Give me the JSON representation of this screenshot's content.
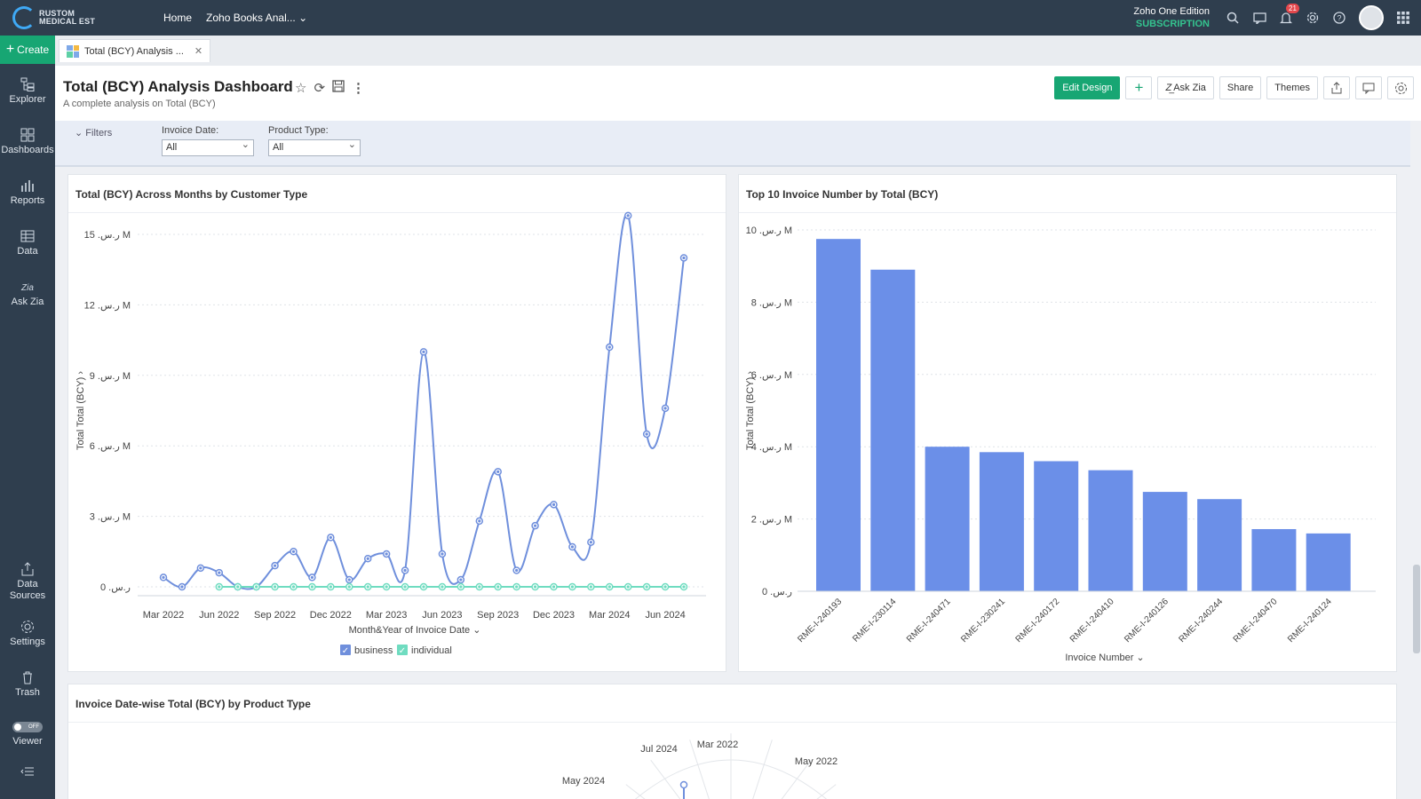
{
  "topbar": {
    "logo_line1": "RUSTOM",
    "logo_line2": "MEDICAL EST",
    "nav_home": "Home",
    "nav_workspace": "Zoho Books Anal...",
    "edition": "Zoho One Edition",
    "subscription": "SUBSCRIPTION",
    "notifications": "21"
  },
  "sidebar": {
    "create": "Create",
    "items": [
      "Explorer",
      "Dashboards",
      "Reports",
      "Data",
      "Ask Zia",
      "Data Sources",
      "Settings",
      "Trash",
      "Viewer"
    ],
    "viewer_toggle": "OFF"
  },
  "tab": {
    "label": "Total (BCY) Analysis ..."
  },
  "header": {
    "title": "Total (BCY) Analysis Dashboard",
    "subtitle": "A complete analysis on Total (BCY)",
    "edit_design": "Edit Design",
    "ask_zia": "Ask Zia",
    "share": "Share",
    "themes": "Themes"
  },
  "filters": {
    "toggle": "Filters",
    "invoice_date_label": "Invoice Date:",
    "invoice_date_value": "All",
    "product_type_label": "Product Type:",
    "product_type_value": "All"
  },
  "colors": {
    "business": "#6f8fdc",
    "individual": "#6fdcc0",
    "bar": "#6b8fe8",
    "accent": "#17a673"
  },
  "chart_data": [
    {
      "type": "line",
      "title": "Total (BCY) Across Months by Customer Type",
      "xlabel": "Month&Year of Invoice Date",
      "ylabel": "Total Total (BCY)",
      "ylim": [
        0,
        15
      ],
      "yticks": [
        "0 .ر.س",
        "3 .ر.س M",
        "6 .ر.س M",
        "9 .ر.س M",
        "12 .ر.س M",
        "15 .ر.س M"
      ],
      "xticks": [
        "Mar 2022",
        "Jun 2022",
        "Sep 2022",
        "Dec 2022",
        "Mar 2023",
        "Jun 2023",
        "Sep 2023",
        "Dec 2023",
        "Mar 2024",
        "Jun 2024"
      ],
      "x": [
        "Mar 2022",
        "Apr 2022",
        "May 2022",
        "Jun 2022",
        "Jul 2022",
        "Aug 2022",
        "Sep 2022",
        "Oct 2022",
        "Nov 2022",
        "Dec 2022",
        "Jan 2023",
        "Feb 2023",
        "Mar 2023",
        "Apr 2023",
        "May 2023",
        "Jun 2023",
        "Jul 2023",
        "Aug 2023",
        "Sep 2023",
        "Oct 2023",
        "Nov 2023",
        "Dec 2023",
        "Jan 2024",
        "Feb 2024",
        "Mar 2024",
        "Apr 2024",
        "May 2024",
        "Jun 2024",
        "Jul 2024"
      ],
      "series": [
        {
          "name": "business",
          "values": [
            0.4,
            0.0,
            0.8,
            0.6,
            0.0,
            0.0,
            0.9,
            1.5,
            0.4,
            2.1,
            0.3,
            1.2,
            1.4,
            0.7,
            10.0,
            1.4,
            0.3,
            2.8,
            4.9,
            0.7,
            2.6,
            3.5,
            1.7,
            1.9,
            10.2,
            15.8,
            6.5,
            7.6,
            14.0
          ]
        },
        {
          "name": "individual",
          "values": [
            null,
            null,
            null,
            0.0,
            0.0,
            0.0,
            0.0,
            0.0,
            0.0,
            0.0,
            0.0,
            0.0,
            0.0,
            0.0,
            0.0,
            0.0,
            0.0,
            0.0,
            0.0,
            0.0,
            0.0,
            0.0,
            0.0,
            0.0,
            0.0,
            0.0,
            0.0,
            0.0,
            0.0
          ]
        }
      ],
      "legend": [
        "business",
        "individual"
      ],
      "legend_position": "bottom",
      "grid": true
    },
    {
      "type": "bar",
      "title": "Top 10 Invoice Number by Total (BCY)",
      "xlabel": "Invoice Number",
      "ylabel": "Total Total (BCY)",
      "ylim": [
        0,
        10
      ],
      "yticks": [
        "0 .ر.س",
        "2 .ر.س M",
        "4 .ر.س M",
        "6 .ر.س M",
        "8 .ر.س M",
        "10 .ر.س M"
      ],
      "categories": [
        "RME-I-240193",
        "RME-I-230114",
        "RME-I-240471",
        "RME-I-230241",
        "RME-I-240172",
        "RME-I-240410",
        "RME-I-240126",
        "RME-I-240244",
        "RME-I-240470",
        "RME-I-240124"
      ],
      "values": [
        9.75,
        8.9,
        4.0,
        3.85,
        3.6,
        3.35,
        2.75,
        2.55,
        1.72,
        1.6
      ],
      "grid": true
    },
    {
      "type": "radar",
      "title": "Invoice Date-wise Total (BCY) by Product Type",
      "visible_labels": [
        "Jul 2024",
        "Mar 2022",
        "May 2022",
        "May 2024"
      ]
    }
  ]
}
